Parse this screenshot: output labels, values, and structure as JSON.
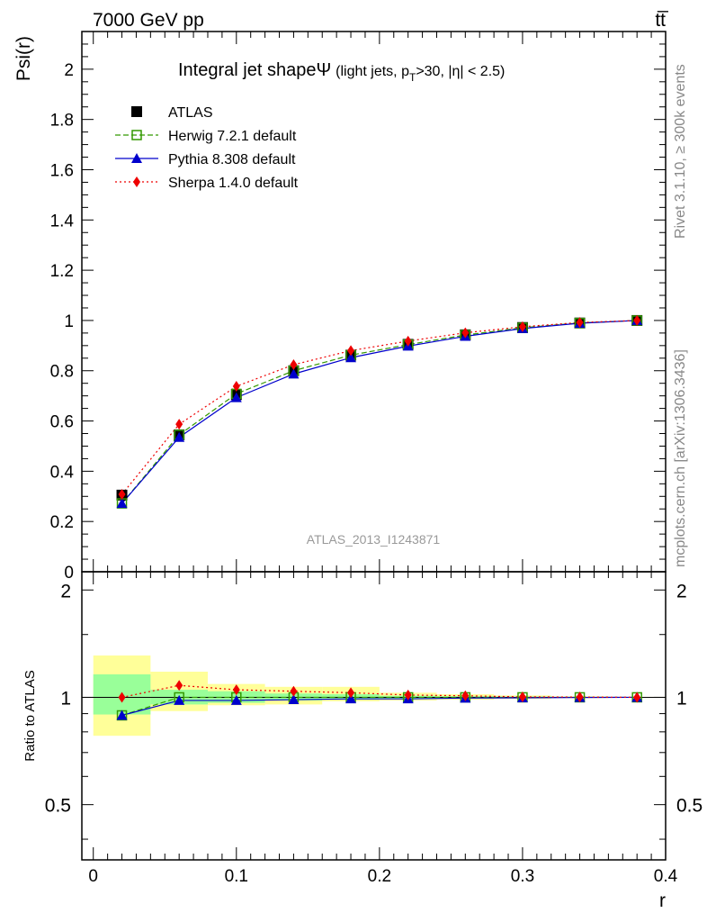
{
  "header": {
    "left": "7000 GeV pp",
    "right": "tt̅"
  },
  "side_labels": {
    "rivet": "Rivet 3.1.10, ≥ 300k events",
    "mcplots": "mcplots.cern.ch [arXiv:1306.3436]"
  },
  "watermark": "ATLAS_2013_I1243871",
  "chart_data": {
    "type": "line",
    "title_main": "Integral jet shapeΨ",
    "title_sub": "(light jets, p",
    "title_sub_T": "T",
    "title_sub_rest": ">30, |η| < 2.5)",
    "xlabel": "r",
    "ylabel": "Psi(r)",
    "ratio_ylabel": "Ratio to ATLAS",
    "xlim": [
      -0.008,
      0.4
    ],
    "ylim": [
      0,
      2.15
    ],
    "ratio_ylim": [
      0.35,
      2.25
    ],
    "x_ticks": [
      "0",
      "0.1",
      "0.2",
      "0.3",
      "0.4"
    ],
    "y_ticks": [
      "0",
      "0.2",
      "0.4",
      "0.6",
      "0.8",
      "1",
      "1.2",
      "1.4",
      "1.6",
      "1.8",
      "2"
    ],
    "ratio_ticks": [
      "0.5",
      "1",
      "2"
    ],
    "x": [
      0.02,
      0.06,
      0.1,
      0.14,
      0.18,
      0.22,
      0.26,
      0.3,
      0.34,
      0.38
    ],
    "bin_edges": [
      0.0,
      0.04,
      0.08,
      0.12,
      0.16,
      0.2,
      0.24,
      0.28,
      0.32,
      0.36,
      0.4
    ],
    "series": [
      {
        "name": "ATLAS",
        "color": "#000000",
        "marker": "square",
        "values": [
          0.305,
          0.545,
          0.705,
          0.8,
          0.862,
          0.905,
          0.943,
          0.972,
          0.99,
          1.0
        ]
      },
      {
        "name": "Herwig 7.2.1 default",
        "color": "#339900",
        "marker": "open-square",
        "dash": "dashed",
        "values": [
          0.272,
          0.545,
          0.708,
          0.8,
          0.862,
          0.904,
          0.942,
          0.971,
          0.99,
          1.0
        ]
      },
      {
        "name": "Pythia 8.308 default",
        "color": "#0000cc",
        "marker": "triangle",
        "dash": "solid",
        "values": [
          0.272,
          0.535,
          0.693,
          0.787,
          0.852,
          0.898,
          0.937,
          0.968,
          0.989,
          1.0
        ]
      },
      {
        "name": "Sherpa 1.4.0 default",
        "color": "#ee0000",
        "marker": "diamond",
        "dash": "dotted",
        "values": [
          0.308,
          0.587,
          0.738,
          0.824,
          0.88,
          0.918,
          0.951,
          0.975,
          0.992,
          1.0
        ]
      }
    ],
    "ratio_series": [
      {
        "name": "Herwig 7.2.1 default",
        "values": [
          0.89,
          1.0,
          1.0,
          1.0,
          1.0,
          1.0,
          1.0,
          1.0,
          1.0,
          1.0
        ]
      },
      {
        "name": "Pythia 8.308 default",
        "values": [
          0.89,
          0.98,
          0.98,
          0.985,
          0.99,
          0.99,
          0.995,
          0.997,
          0.999,
          1.0
        ]
      },
      {
        "name": "Sherpa 1.4.0 default",
        "values": [
          1.0,
          1.08,
          1.05,
          1.04,
          1.03,
          1.015,
          1.01,
          1.003,
          1.002,
          1.0
        ]
      }
    ],
    "band_inner": [
      [
        0.895,
        1.16
      ],
      [
        0.955,
        1.05
      ],
      [
        0.965,
        1.04
      ],
      [
        0.98,
        1.025
      ],
      [
        0.985,
        1.02
      ],
      [
        0.99,
        1.01
      ],
      [
        0.993,
        1.007
      ],
      [
        0.996,
        1.004
      ],
      [
        0.998,
        1.002
      ],
      [
        0.999,
        1.001
      ]
    ],
    "band_outer": [
      [
        0.78,
        1.31
      ],
      [
        0.915,
        1.18
      ],
      [
        0.95,
        1.09
      ],
      [
        0.955,
        1.07
      ],
      [
        0.975,
        1.07
      ],
      [
        0.98,
        1.03
      ],
      [
        0.985,
        1.02
      ],
      [
        0.99,
        1.012
      ],
      [
        0.995,
        1.006
      ],
      [
        0.997,
        1.003
      ]
    ],
    "legend_position": "top-left"
  }
}
